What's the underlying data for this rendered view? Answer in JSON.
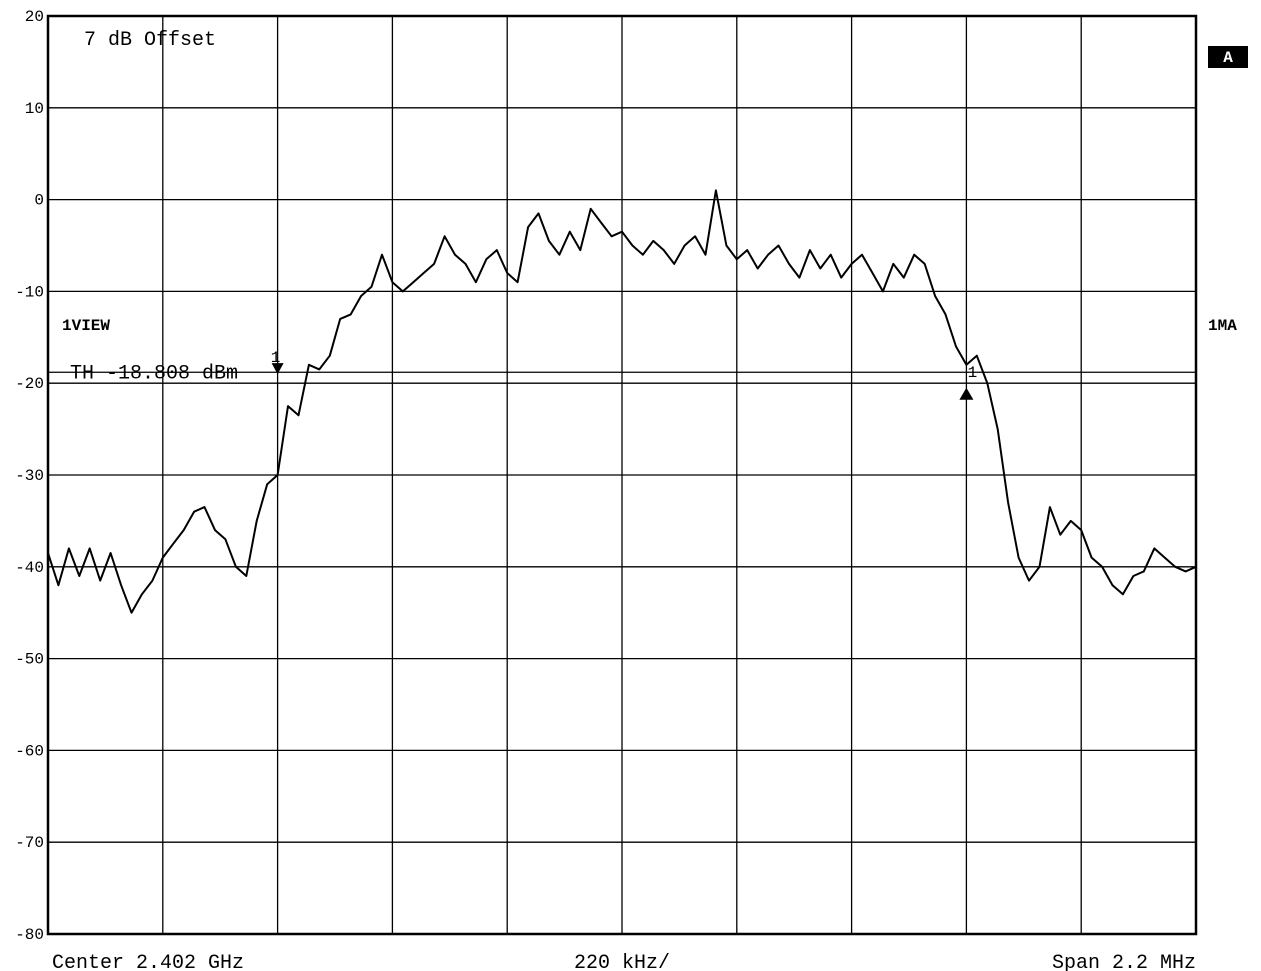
{
  "chart_data": {
    "type": "line",
    "title": "",
    "offset_label": "7 dB Offset",
    "trace_label": "1VIEW",
    "right_label": "1MA",
    "mode_badge": "A",
    "threshold": {
      "text": "TH -18.808 dBm",
      "value": -18.808
    },
    "xlabel": {
      "center": "Center 2.402 GHz",
      "per_div": "220 kHz/",
      "span": "Span 2.2 MHz"
    },
    "x_unit": "MHz offset from center",
    "xlim": [
      -1.1,
      1.1
    ],
    "ylim": [
      -80,
      20
    ],
    "yticks": [
      20,
      10,
      0,
      -10,
      -20,
      -30,
      -40,
      -50,
      -60,
      -70,
      -80
    ],
    "ytick_labels": [
      "20",
      "10",
      "0",
      "-10",
      "-20",
      "-30",
      "-40",
      "-50",
      "-60",
      "-70",
      "-80"
    ],
    "grid": true,
    "markers": [
      {
        "label": "1",
        "x": -0.66,
        "y": -18.8,
        "direction": "down"
      },
      {
        "label": "1",
        "x": 0.66,
        "y": -20.5,
        "direction": "up"
      }
    ],
    "series": [
      {
        "x": [
          -1.1,
          -1.08,
          -1.06,
          -1.04,
          -1.02,
          -1.0,
          -0.98,
          -0.96,
          -0.94,
          -0.92,
          -0.9,
          -0.88,
          -0.86,
          -0.84,
          -0.82,
          -0.8,
          -0.78,
          -0.76,
          -0.74,
          -0.72,
          -0.7,
          -0.68,
          -0.66,
          -0.64,
          -0.62,
          -0.6,
          -0.58,
          -0.56,
          -0.54,
          -0.52,
          -0.5,
          -0.48,
          -0.46,
          -0.44,
          -0.42,
          -0.4,
          -0.38,
          -0.36,
          -0.34,
          -0.32,
          -0.3,
          -0.28,
          -0.26,
          -0.24,
          -0.22,
          -0.2,
          -0.18,
          -0.16,
          -0.14,
          -0.12,
          -0.1,
          -0.08,
          -0.06,
          -0.04,
          -0.02,
          0.0,
          0.02,
          0.04,
          0.06,
          0.08,
          0.1,
          0.12,
          0.14,
          0.16,
          0.18,
          0.2,
          0.22,
          0.24,
          0.26,
          0.28,
          0.3,
          0.32,
          0.34,
          0.36,
          0.38,
          0.4,
          0.42,
          0.44,
          0.46,
          0.48,
          0.5,
          0.52,
          0.54,
          0.56,
          0.58,
          0.6,
          0.62,
          0.64,
          0.66,
          0.68,
          0.7,
          0.72,
          0.74,
          0.76,
          0.78,
          0.8,
          0.82,
          0.84,
          0.86,
          0.88,
          0.9,
          0.92,
          0.94,
          0.96,
          0.98,
          1.0,
          1.02,
          1.04,
          1.06,
          1.08,
          1.1
        ],
        "values": [
          -38.5,
          -42,
          -38,
          -41,
          -38,
          -41.5,
          -38.5,
          -42,
          -45,
          -43,
          -41.5,
          -39,
          -37.5,
          -36,
          -34,
          -33.5,
          -36,
          -37,
          -40,
          -41,
          -35,
          -31,
          -30,
          -22.5,
          -23.5,
          -18,
          -18.5,
          -17,
          -13,
          -12.5,
          -10.5,
          -9.5,
          -6,
          -9,
          -10,
          -9,
          -8,
          -7,
          -4,
          -6,
          -7,
          -9,
          -6.5,
          -5.5,
          -8,
          -9,
          -3,
          -1.5,
          -4.5,
          -6,
          -3.5,
          -5.5,
          -1,
          -2.5,
          -4,
          -3.5,
          -5,
          -6,
          -4.5,
          -5.5,
          -7,
          -5,
          -4,
          -6,
          1,
          -5,
          -6.5,
          -5.5,
          -7.5,
          -6,
          -5,
          -7,
          -8.5,
          -5.5,
          -7.5,
          -6,
          -8.5,
          -7,
          -6,
          -8,
          -10,
          -7,
          -8.5,
          -6,
          -7,
          -10.5,
          -12.5,
          -16,
          -18,
          -17,
          -20,
          -25,
          -33,
          -39,
          -41.5,
          -40,
          -33.5,
          -36.5,
          -35,
          -36,
          -39,
          -40,
          -42,
          -43,
          -41,
          -40.5,
          -38,
          -39,
          -40,
          -40.5,
          -40
        ]
      }
    ]
  }
}
